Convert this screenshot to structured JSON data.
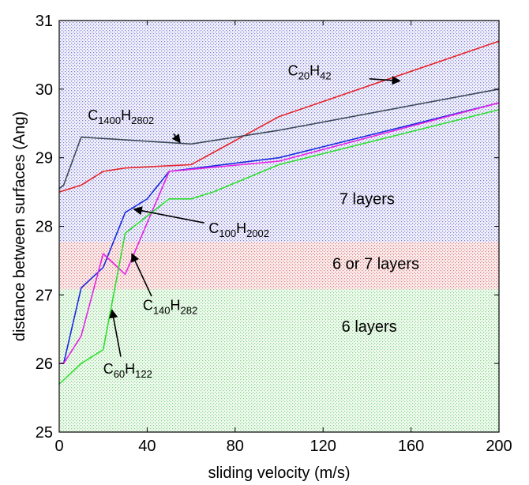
{
  "chart_data": {
    "type": "line",
    "title": "",
    "xlabel": "sliding velocity (m/s)",
    "ylabel": "distance between surfaces (Ang)",
    "xlim": [
      0,
      200
    ],
    "ylim": [
      25,
      31
    ],
    "xticks": [
      0,
      40,
      80,
      120,
      160,
      200
    ],
    "yticks": [
      25,
      26,
      27,
      28,
      29,
      30,
      31
    ],
    "grid": false,
    "regions": [
      {
        "label": "7 layers",
        "y_range": [
          27.77,
          31
        ],
        "color": "#8f8fd9"
      },
      {
        "label": "6 or 7 layers",
        "y_range": [
          27.08,
          27.77
        ],
        "color": "#e58c8c"
      },
      {
        "label": "6 layers",
        "y_range": [
          25,
          27.08
        ],
        "color": "#8fd98f"
      }
    ],
    "series": [
      {
        "key": "c20",
        "color": "#e8242b",
        "x": [
          0,
          10,
          20,
          30,
          60,
          100,
          200
        ],
        "y": [
          28.5,
          28.6,
          28.8,
          28.85,
          28.9,
          29.6,
          30.7
        ]
      },
      {
        "key": "c1400",
        "color": "#3d4a59",
        "x": [
          0,
          2,
          10,
          60,
          100,
          200
        ],
        "y": [
          28.55,
          28.6,
          29.3,
          29.2,
          29.4,
          30.0
        ]
      },
      {
        "key": "c100",
        "color": "#1a2ae0",
        "x": [
          0,
          2,
          10,
          20,
          30,
          40,
          50,
          100,
          200
        ],
        "y": [
          26.0,
          26.0,
          27.1,
          27.4,
          28.2,
          28.4,
          28.8,
          29.0,
          29.8
        ]
      },
      {
        "key": "c140",
        "color": "#e623e6",
        "x": [
          0,
          2,
          10,
          20,
          30,
          50,
          100,
          200
        ],
        "y": [
          26.0,
          26.0,
          26.4,
          27.6,
          27.3,
          28.8,
          28.95,
          29.8
        ]
      },
      {
        "key": "c60",
        "color": "#2ee02e",
        "x": [
          0,
          10,
          20,
          30,
          50,
          60,
          70,
          100,
          200
        ],
        "y": [
          25.7,
          26.0,
          26.2,
          27.9,
          28.4,
          28.4,
          28.5,
          28.9,
          29.7
        ]
      }
    ],
    "annotations": [
      {
        "key": "c20",
        "base": "C",
        "sub1": "20",
        "mid": "H",
        "sub2": "42",
        "text_at": [
          104,
          30.2
        ],
        "arrow_from": [
          141,
          30.15
        ],
        "arrow_to": [
          155,
          30.12
        ]
      },
      {
        "key": "c1400",
        "base": "C",
        "sub1": "1400",
        "mid": "H",
        "sub2": "2802",
        "text_at": [
          13,
          29.55
        ],
        "arrow_from": [
          52,
          29.35
        ],
        "arrow_to": [
          55,
          29.22
        ]
      },
      {
        "key": "c100",
        "base": "C",
        "sub1": "100",
        "mid": "H",
        "sub2": "2002",
        "text_at": [
          68,
          27.9
        ],
        "arrow_from": [
          66,
          28.05
        ],
        "arrow_to": [
          34,
          28.25
        ]
      },
      {
        "key": "c140",
        "base": "C",
        "sub1": "140",
        "mid": "H",
        "sub2": "282",
        "text_at": [
          38,
          26.78
        ],
        "arrow_from": [
          42,
          26.98
        ],
        "arrow_to": [
          33,
          27.6
        ]
      },
      {
        "key": "c60",
        "base": "C",
        "sub1": "60",
        "mid": "H",
        "sub2": "122",
        "text_at": [
          20,
          25.85
        ],
        "arrow_from": [
          28,
          26.1
        ],
        "arrow_to": [
          24,
          26.78
        ]
      }
    ],
    "zone_labels": [
      {
        "text": "7 layers",
        "at": [
          140,
          28.32
        ]
      },
      {
        "text": "6 or 7 layers",
        "at": [
          144,
          27.38
        ]
      },
      {
        "text": "6 layers",
        "at": [
          141,
          26.46
        ]
      }
    ]
  }
}
